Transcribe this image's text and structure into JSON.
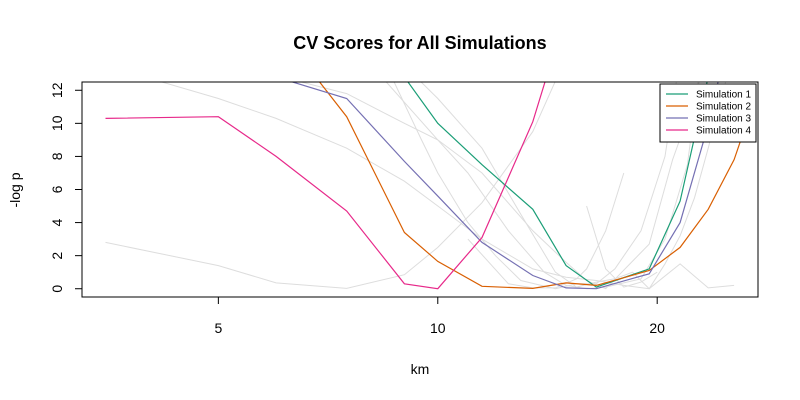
{
  "chart_data": {
    "type": "line",
    "title": "CV Scores for All Simulations",
    "xlabel": "km",
    "ylabel": "-log p",
    "x_scale": "log",
    "xlim": [
      3.25,
      27.5
    ],
    "ylim": [
      -0.5,
      12.5
    ],
    "xticks": [
      5,
      10,
      20
    ],
    "yticks": [
      0,
      2,
      4,
      6,
      8,
      10,
      12
    ],
    "grid": false,
    "legend": {
      "position": "top-right",
      "entries": [
        "Simulation 1",
        "Simulation 2",
        "Simulation 3",
        "Simulation 4"
      ]
    },
    "background_series_color": "#dddddd",
    "background_series": [
      {
        "x": [
          3.5,
          5.0,
          6.0,
          7.5,
          9.0,
          10.0,
          11.5,
          13.5,
          15.0,
          16.5,
          18.0,
          19.5,
          21.5,
          23.5,
          25.5
        ],
        "y": [
          2.8,
          1.4,
          0.35,
          0.02,
          0.85,
          2.5,
          5.2,
          9.5,
          14.0,
          17.0,
          18.0,
          18.0,
          18.0,
          18.0,
          18.0
        ]
      },
      {
        "x": [
          3.5,
          5.0,
          6.0,
          7.5,
          9.0,
          10.0,
          11.5,
          13.5,
          15.0,
          16.5,
          18.0,
          19.5,
          21.5,
          23.5,
          25.5
        ],
        "y": [
          13.5,
          11.5,
          10.3,
          8.5,
          6.5,
          5.0,
          3.0,
          1.2,
          0.7,
          0.5,
          0.2,
          0.0,
          1.5,
          0.05,
          0.2
        ]
      },
      {
        "x": [
          4.5,
          5.5,
          6.5,
          7.5,
          9.0,
          10.0,
          11.5,
          13.5,
          15.0,
          16.0,
          17.0,
          19.5,
          21.0,
          22.5,
          23.5
        ],
        "y": [
          14.0,
          13.0,
          12.5,
          11.8,
          10.0,
          9.0,
          7.0,
          3.5,
          1.6,
          0.5,
          0.0,
          2.7,
          7.8,
          11.5,
          14.5
        ]
      },
      {
        "x": [
          5.5,
          6.5,
          7.5,
          8.5,
          10.0,
          11.0,
          12.5,
          14.0,
          15.0,
          16.0,
          17.0,
          19.0,
          20.5,
          22.0,
          23.0
        ],
        "y": [
          16.0,
          14.5,
          13.5,
          12.5,
          9.0,
          7.0,
          3.5,
          1.0,
          0.2,
          0.0,
          0.1,
          0.6,
          3.0,
          7.5,
          14.0
        ]
      },
      {
        "x": [
          7.5,
          8.5,
          9.5,
          10.0,
          11.0,
          12.0,
          13.0,
          14.5,
          15.5,
          16.5,
          17.5,
          19.0,
          20.5,
          21.5
        ],
        "y": [
          16.0,
          13.5,
          9.0,
          7.0,
          4.0,
          2.0,
          0.5,
          0.0,
          0.3,
          0.3,
          1.2,
          3.5,
          8.0,
          14.0
        ]
      },
      {
        "x": [
          8.0,
          9.0,
          10.0,
          11.5,
          13.0,
          14.5,
          15.5,
          16.5,
          17.5,
          18.5,
          19.5,
          20.5,
          21.5,
          22.5,
          23.5,
          25.0
        ],
        "y": [
          16.0,
          13.5,
          11.5,
          8.5,
          4.5,
          1.0,
          0.1,
          0.4,
          0.6,
          1.0,
          0.0,
          1.5,
          3.2,
          5.5,
          8.5,
          13.0
        ]
      },
      {
        "x": [
          11.0,
          12.5,
          13.5,
          14.5,
          15.5,
          16.0,
          17.0,
          18.0
        ],
        "y": [
          3.0,
          0.3,
          0.05,
          0.05,
          0.6,
          1.2,
          3.5,
          7.0
        ]
      },
      {
        "x": [
          16.0,
          17.0,
          18.0,
          19.0,
          20.0
        ],
        "y": [
          5.0,
          1.2,
          0.1,
          0.4,
          1.0
        ]
      }
    ],
    "series": [
      {
        "name": "Simulation 1",
        "color": "#1b9e77",
        "x": [
          9.0,
          10.0,
          11.5,
          13.5,
          15.0,
          16.5,
          19.5,
          21.5,
          23.5
        ],
        "y": [
          12.8,
          10.0,
          7.5,
          4.8,
          1.4,
          0.1,
          1.2,
          5.3,
          12.8
        ]
      },
      {
        "name": "Simulation 2",
        "color": "#d95f02",
        "x": [
          6.8,
          7.5,
          9.0,
          10.0,
          11.5,
          13.5,
          15.0,
          16.5,
          19.5,
          21.5,
          23.5,
          25.5,
          27.0
        ],
        "y": [
          12.8,
          10.4,
          3.4,
          1.65,
          0.15,
          0.02,
          0.35,
          0.2,
          1.1,
          2.5,
          4.8,
          7.8,
          11.0
        ]
      },
      {
        "name": "Simulation 3",
        "color": "#7570b3",
        "x": [
          6.0,
          7.5,
          9.0,
          10.0,
          11.5,
          13.5,
          15.0,
          16.5,
          19.5,
          21.5,
          23.5,
          24.3
        ],
        "y": [
          12.8,
          11.5,
          7.7,
          5.6,
          2.8,
          0.8,
          0.05,
          0.0,
          0.9,
          4.0,
          9.9,
          12.7
        ]
      },
      {
        "name": "Simulation 4",
        "color": "#e7298a",
        "x": [
          3.5,
          5.0,
          6.0,
          7.5,
          9.0,
          10.0,
          11.5,
          13.5,
          14.1
        ],
        "y": [
          10.3,
          10.4,
          8.0,
          4.7,
          0.3,
          0.0,
          3.1,
          10.1,
          12.8
        ]
      }
    ]
  }
}
